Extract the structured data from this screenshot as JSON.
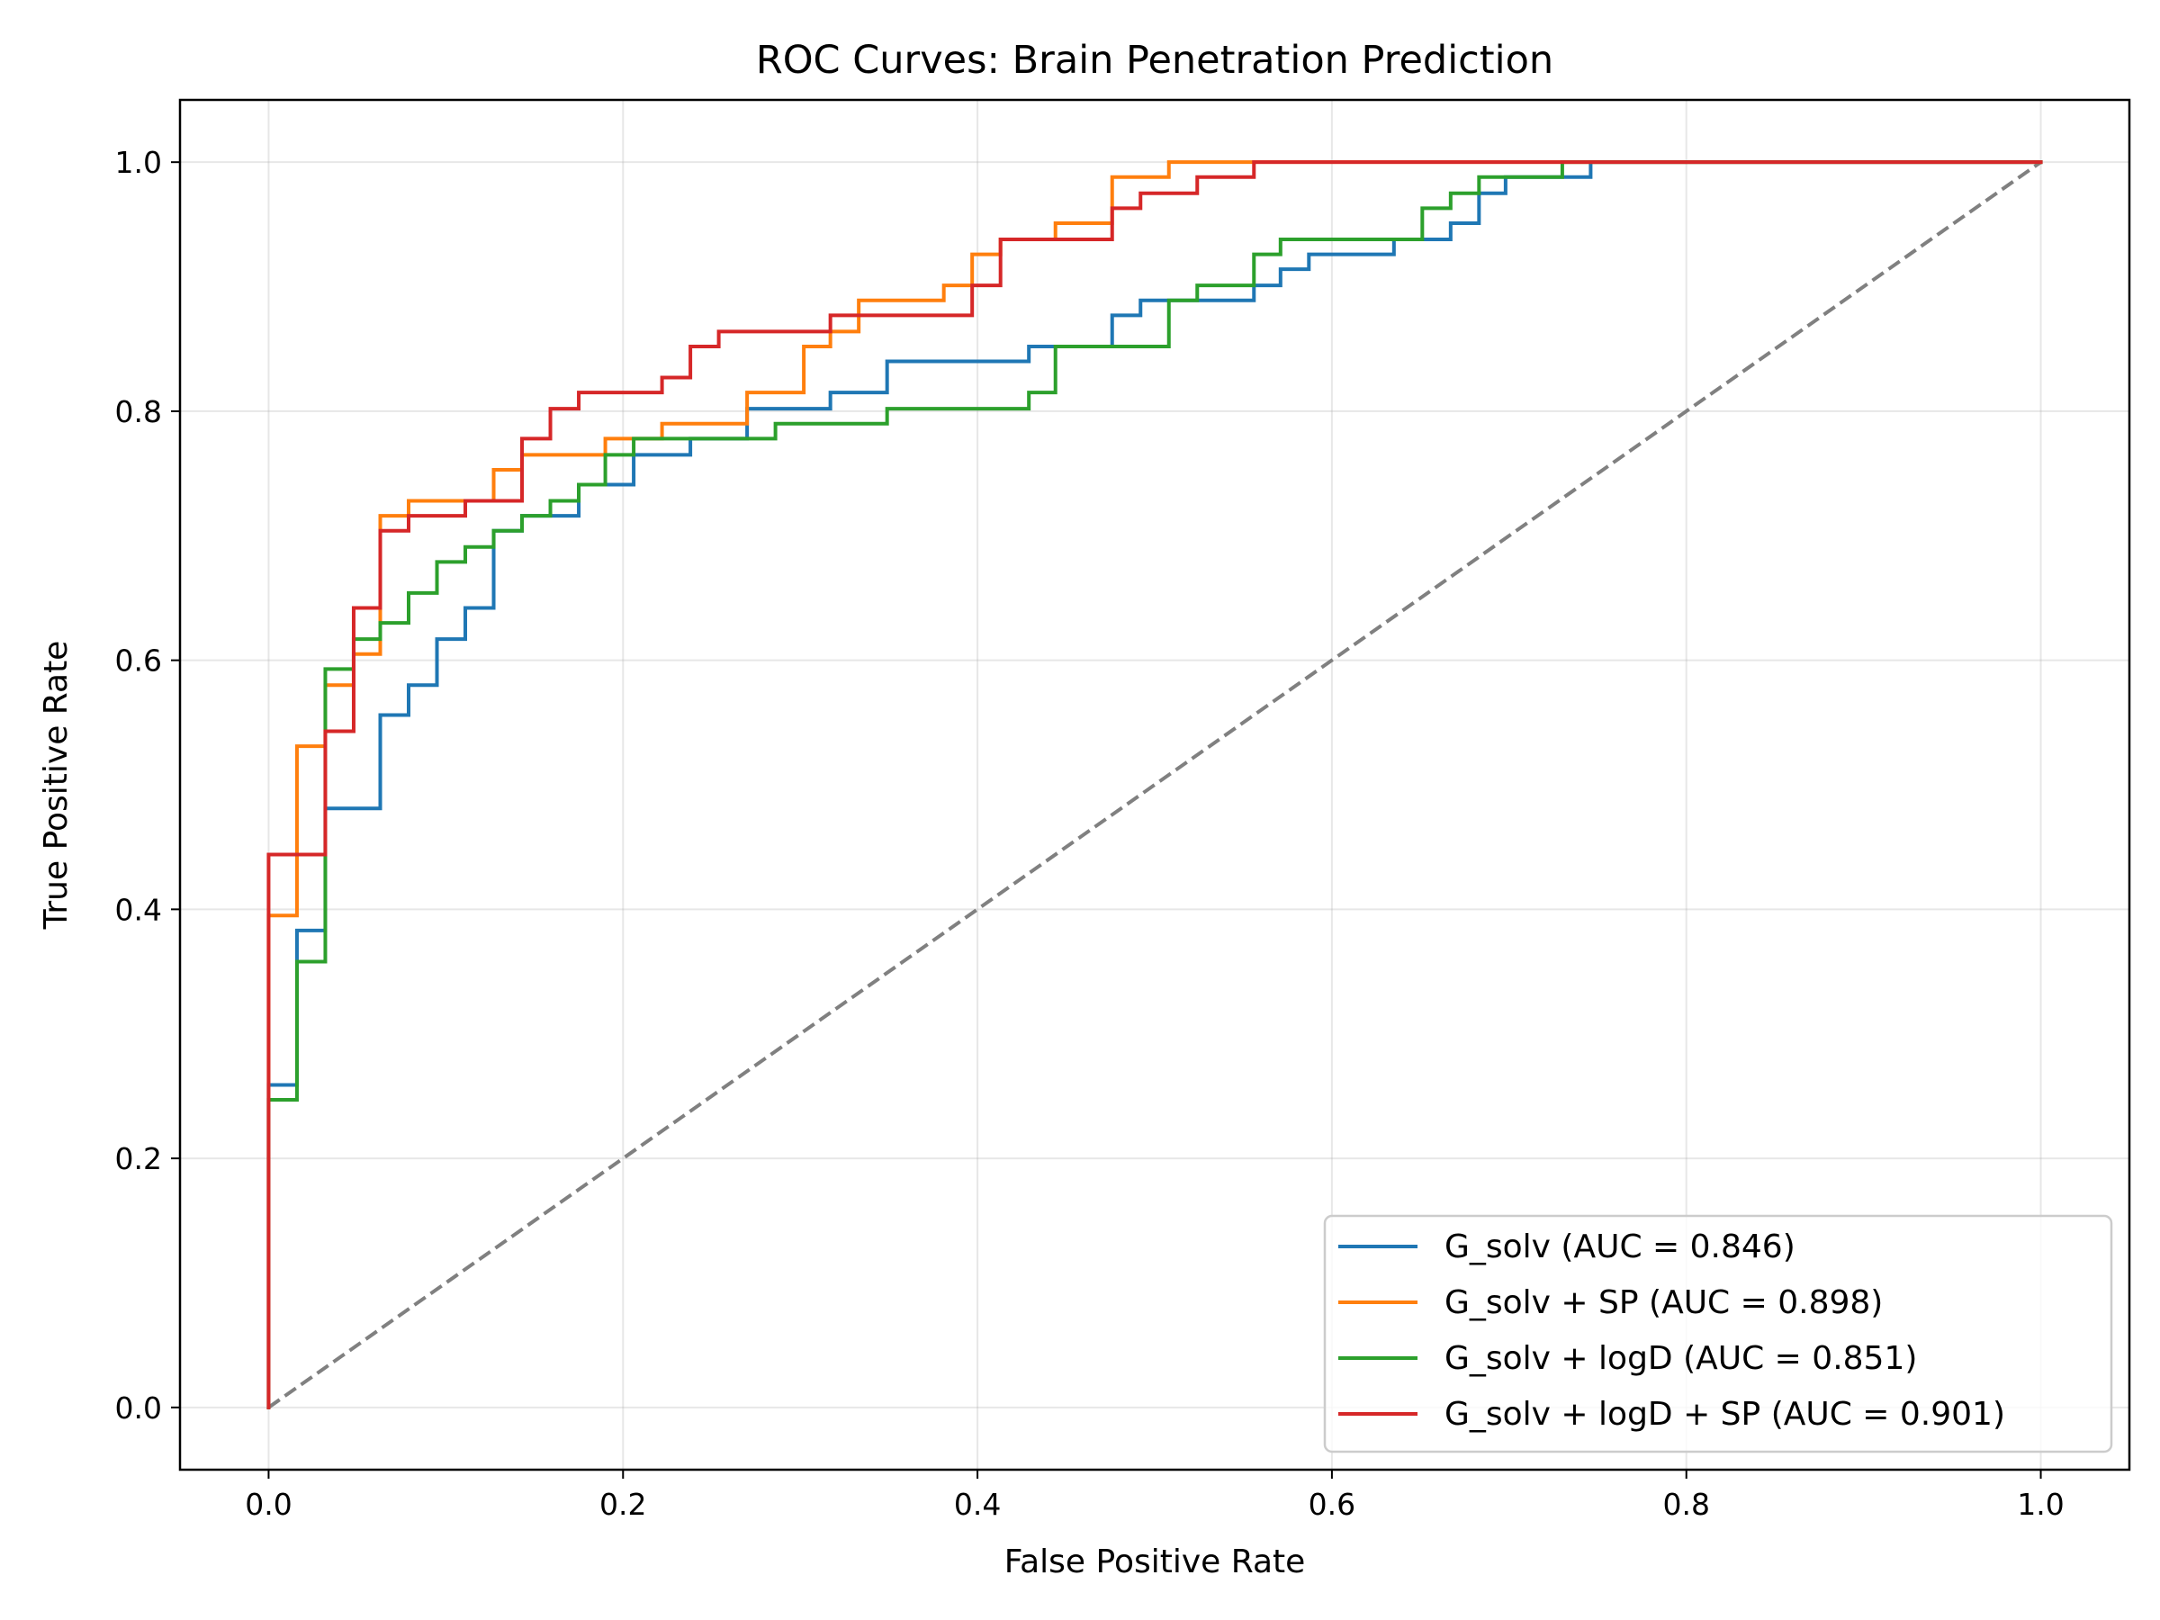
{
  "chart_data": {
    "type": "line",
    "title": "ROC Curves: Brain Penetration Prediction",
    "xlabel": "False Positive Rate",
    "ylabel": "True Positive Rate",
    "xlim": [
      -0.05,
      1.05
    ],
    "ylim": [
      -0.05,
      1.05
    ],
    "xticks": [
      "0.0",
      "0.2",
      "0.4",
      "0.6",
      "0.8",
      "1.0"
    ],
    "yticks": [
      "0.0",
      "0.2",
      "0.4",
      "0.6",
      "0.8",
      "1.0"
    ],
    "grid": true,
    "legend_position": "lower right",
    "series": [
      {
        "name": "G_solv (AUC = 0.846)",
        "color": "#1f77b4",
        "x": [
          0,
          0,
          0.016,
          0.016,
          0.032,
          0.032,
          0.063,
          0.063,
          0.079,
          0.079,
          0.095,
          0.095,
          0.111,
          0.111,
          0.127,
          0.127,
          0.143,
          0.143,
          0.175,
          0.175,
          0.206,
          0.206,
          0.238,
          0.238,
          0.27,
          0.27,
          0.317,
          0.317,
          0.349,
          0.349,
          0.429,
          0.429,
          0.476,
          0.476,
          0.492,
          0.492,
          0.556,
          0.556,
          0.571,
          0.571,
          0.587,
          0.587,
          0.635,
          0.635,
          0.667,
          0.667,
          0.683,
          0.683,
          0.698,
          0.698,
          0.746,
          0.746,
          1.0
        ],
        "y": [
          0,
          0.259,
          0.259,
          0.383,
          0.383,
          0.481,
          0.481,
          0.556,
          0.556,
          0.58,
          0.58,
          0.617,
          0.617,
          0.642,
          0.642,
          0.704,
          0.704,
          0.716,
          0.716,
          0.741,
          0.741,
          0.765,
          0.765,
          0.778,
          0.778,
          0.802,
          0.802,
          0.815,
          0.815,
          0.84,
          0.84,
          0.852,
          0.852,
          0.877,
          0.877,
          0.889,
          0.889,
          0.901,
          0.901,
          0.914,
          0.914,
          0.926,
          0.926,
          0.938,
          0.938,
          0.951,
          0.951,
          0.975,
          0.975,
          0.988,
          0.988,
          1.0,
          1.0
        ]
      },
      {
        "name": "G_solv + SP (AUC = 0.898)",
        "color": "#ff7f0e",
        "x": [
          0,
          0,
          0.016,
          0.016,
          0.032,
          0.032,
          0.048,
          0.048,
          0.063,
          0.063,
          0.079,
          0.079,
          0.127,
          0.127,
          0.143,
          0.143,
          0.19,
          0.19,
          0.222,
          0.222,
          0.27,
          0.27,
          0.302,
          0.302,
          0.317,
          0.317,
          0.333,
          0.333,
          0.381,
          0.381,
          0.397,
          0.397,
          0.413,
          0.413,
          0.444,
          0.444,
          0.476,
          0.476,
          0.508,
          0.508,
          1.0
        ],
        "y": [
          0,
          0.395,
          0.395,
          0.531,
          0.531,
          0.58,
          0.58,
          0.605,
          0.605,
          0.716,
          0.716,
          0.728,
          0.728,
          0.753,
          0.753,
          0.765,
          0.765,
          0.778,
          0.778,
          0.79,
          0.79,
          0.815,
          0.815,
          0.852,
          0.852,
          0.864,
          0.864,
          0.889,
          0.889,
          0.901,
          0.901,
          0.926,
          0.926,
          0.938,
          0.938,
          0.951,
          0.951,
          0.988,
          0.988,
          1.0,
          1.0
        ]
      },
      {
        "name": "G_solv + logD (AUC = 0.851)",
        "color": "#2ca02c",
        "x": [
          0,
          0,
          0.016,
          0.016,
          0.032,
          0.032,
          0.048,
          0.048,
          0.063,
          0.063,
          0.079,
          0.079,
          0.095,
          0.095,
          0.111,
          0.111,
          0.127,
          0.127,
          0.143,
          0.143,
          0.159,
          0.159,
          0.175,
          0.175,
          0.19,
          0.19,
          0.206,
          0.206,
          0.286,
          0.286,
          0.349,
          0.349,
          0.429,
          0.429,
          0.444,
          0.444,
          0.508,
          0.508,
          0.524,
          0.524,
          0.556,
          0.556,
          0.571,
          0.571,
          0.651,
          0.651,
          0.667,
          0.667,
          0.683,
          0.683,
          0.73,
          0.73,
          1.0
        ],
        "y": [
          0,
          0.247,
          0.247,
          0.358,
          0.358,
          0.593,
          0.593,
          0.617,
          0.617,
          0.63,
          0.63,
          0.654,
          0.654,
          0.679,
          0.679,
          0.691,
          0.691,
          0.704,
          0.704,
          0.716,
          0.716,
          0.728,
          0.728,
          0.741,
          0.741,
          0.765,
          0.765,
          0.778,
          0.778,
          0.79,
          0.79,
          0.802,
          0.802,
          0.815,
          0.815,
          0.852,
          0.852,
          0.889,
          0.889,
          0.901,
          0.901,
          0.926,
          0.926,
          0.938,
          0.938,
          0.963,
          0.963,
          0.975,
          0.975,
          0.988,
          0.988,
          1.0,
          1.0
        ]
      },
      {
        "name": "G_solv + logD + SP (AUC = 0.901)",
        "color": "#d62728",
        "x": [
          0,
          0,
          0.032,
          0.032,
          0.048,
          0.048,
          0.063,
          0.063,
          0.079,
          0.079,
          0.111,
          0.111,
          0.143,
          0.143,
          0.159,
          0.159,
          0.175,
          0.175,
          0.222,
          0.222,
          0.238,
          0.238,
          0.254,
          0.254,
          0.317,
          0.317,
          0.397,
          0.397,
          0.413,
          0.413,
          0.476,
          0.476,
          0.492,
          0.492,
          0.524,
          0.524,
          0.556,
          0.556,
          1.0
        ],
        "y": [
          0,
          0.444,
          0.444,
          0.543,
          0.543,
          0.642,
          0.642,
          0.704,
          0.704,
          0.716,
          0.716,
          0.728,
          0.728,
          0.778,
          0.778,
          0.802,
          0.802,
          0.815,
          0.815,
          0.827,
          0.827,
          0.852,
          0.852,
          0.864,
          0.864,
          0.877,
          0.877,
          0.901,
          0.901,
          0.938,
          0.938,
          0.963,
          0.963,
          0.975,
          0.975,
          0.988,
          0.988,
          1.0,
          1.0
        ]
      }
    ],
    "reference_line": {
      "x": [
        0,
        1
      ],
      "y": [
        0,
        1
      ],
      "color": "#808080",
      "style": "dashed"
    }
  }
}
